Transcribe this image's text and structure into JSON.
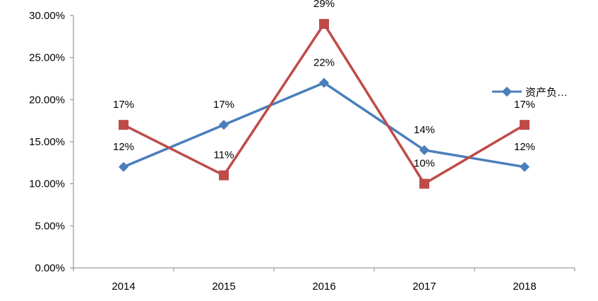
{
  "chart_data": {
    "type": "line",
    "title": "",
    "xlabel": "",
    "ylabel": "",
    "categories": [
      "2014",
      "2015",
      "2016",
      "2017",
      "2018"
    ],
    "ylim": [
      0,
      30
    ],
    "yticks": [
      0,
      5,
      10,
      15,
      20,
      25,
      30
    ],
    "ytick_labels": [
      "0.00%",
      "5.00%",
      "10.00%",
      "15.00%",
      "20.00%",
      "25.00%",
      "30.00%"
    ],
    "grid": false,
    "legend_position": "right",
    "series": [
      {
        "name": "资产负…",
        "marker": "diamond",
        "color": "#4a7ebb",
        "values": [
          12,
          17,
          22,
          14,
          12
        ],
        "labels": [
          "12%",
          "17%",
          "22%",
          "14%",
          "12%"
        ],
        "show_in_legend": true
      },
      {
        "name": "",
        "marker": "square",
        "color": "#be4b48",
        "values": [
          17,
          11,
          29,
          10,
          17
        ],
        "labels": [
          "17%",
          "11%",
          "29%",
          "10%",
          "17%"
        ],
        "show_in_legend": false
      }
    ]
  }
}
